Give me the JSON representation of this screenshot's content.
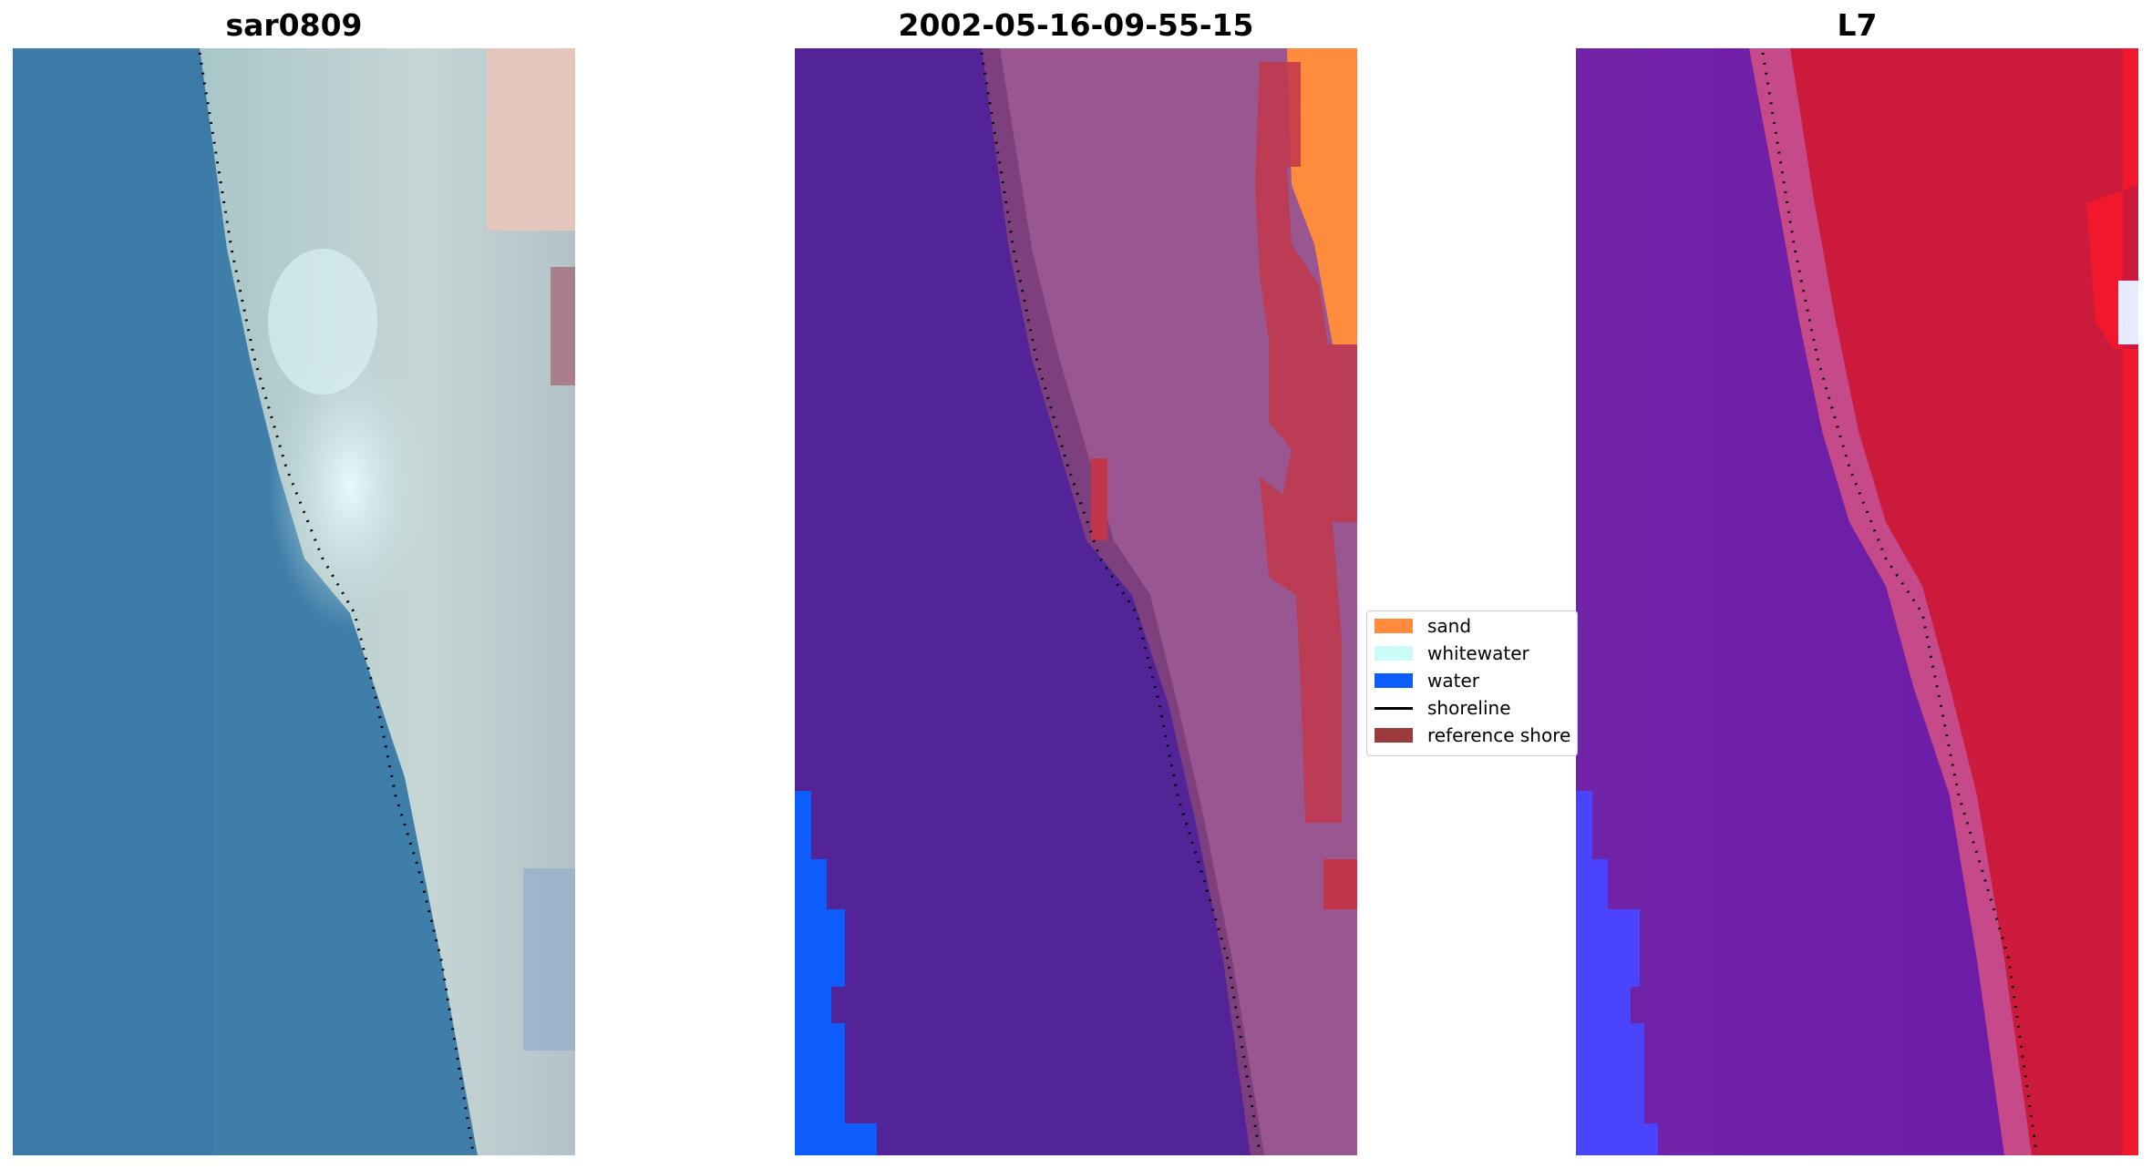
{
  "panels": [
    {
      "title": "sar0809"
    },
    {
      "title": "2002-05-16-09-55-15"
    },
    {
      "title": "L7"
    }
  ],
  "legend": {
    "items": [
      {
        "label": "sand",
        "kind": "patch",
        "color": "#ff8c3d"
      },
      {
        "label": "whitewater",
        "kind": "patch",
        "color": "#ccfcf8"
      },
      {
        "label": "water",
        "kind": "patch",
        "color": "#0d5cfc"
      },
      {
        "label": "shoreline",
        "kind": "line",
        "color": "#000000"
      },
      {
        "label": "reference shore",
        "kind": "patch",
        "color": "#9a3a3a"
      }
    ]
  },
  "colors": {
    "sea_rgb": "#3f7fab",
    "beach_rgb": "#b7cfd1",
    "class_water_dark": "#522498",
    "class_land": "#9a5690",
    "class_ref": "#c2364b",
    "index_low": "#6a19a6",
    "index_high": "#cc1a3c"
  }
}
